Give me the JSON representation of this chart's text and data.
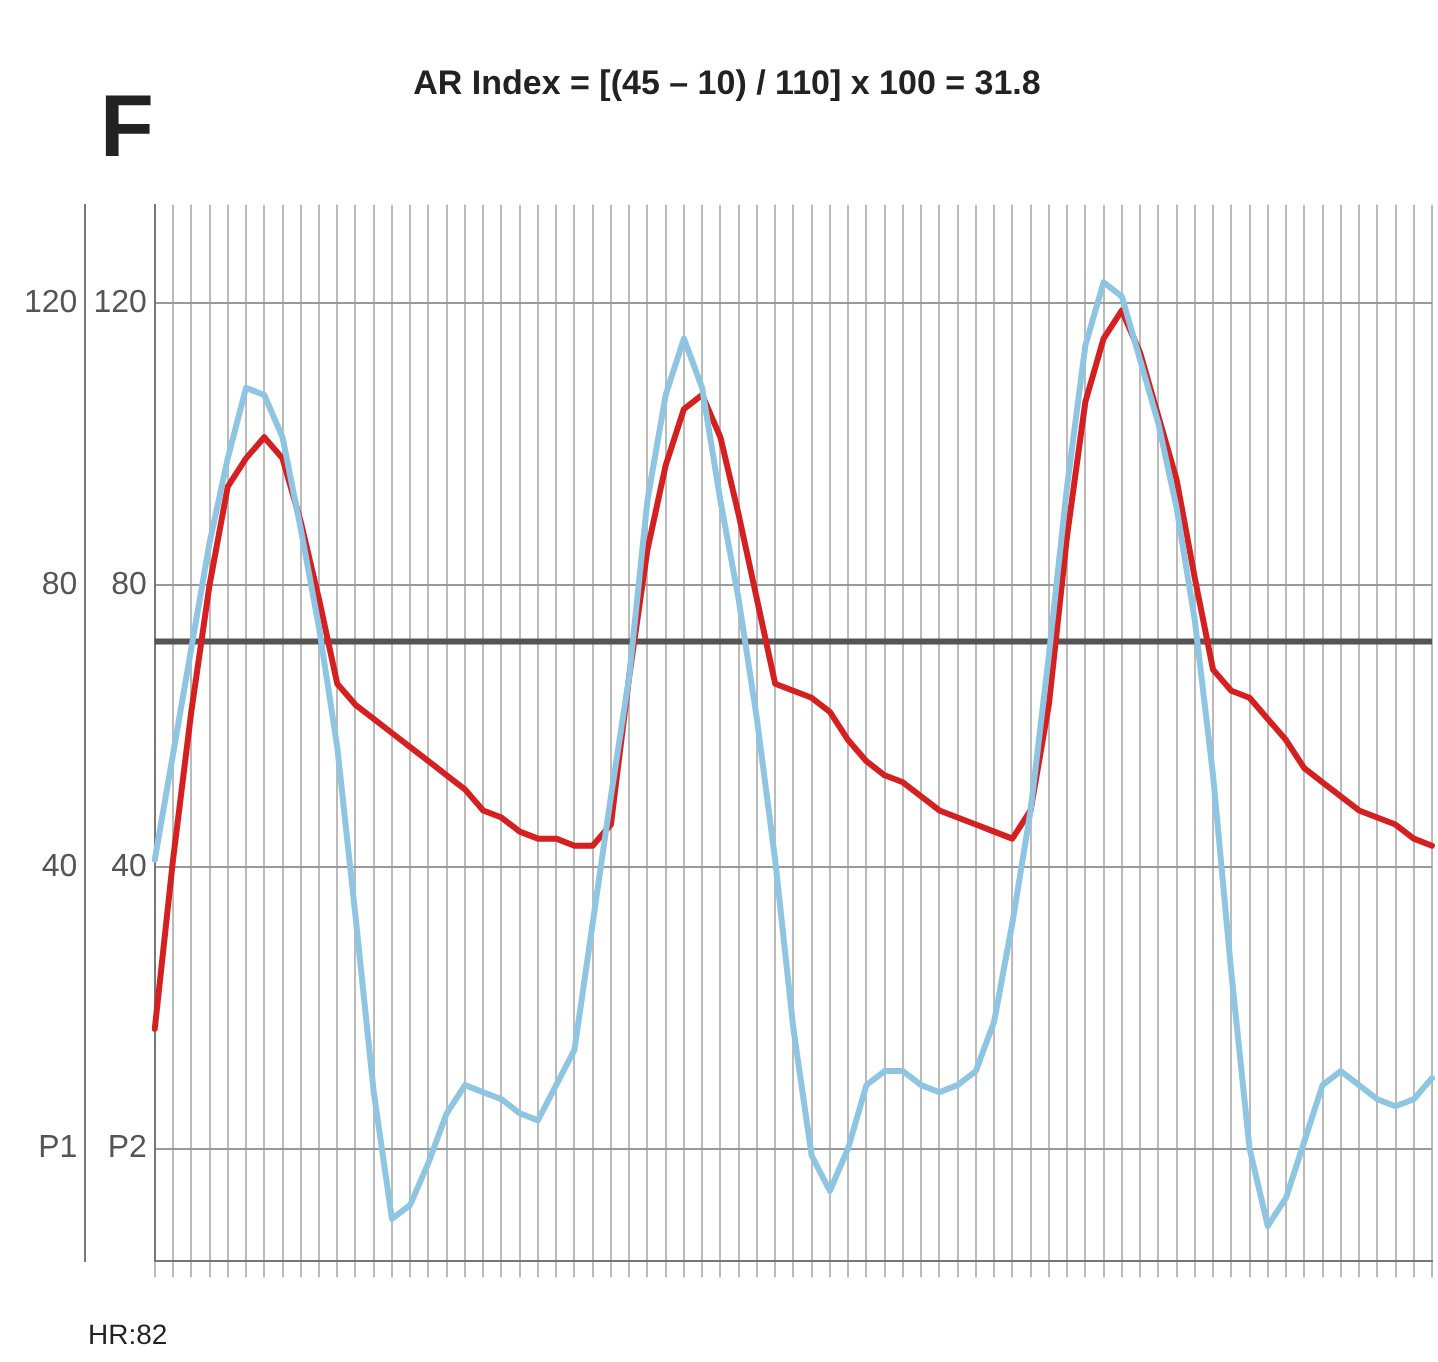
{
  "chart_data": {
    "type": "line",
    "title": "AR Index = [(45 – 10) / 110] x 100 = 31.8",
    "annotations": [
      "F",
      "HR:82"
    ],
    "categories": [
      null,
      null,
      null,
      null,
      null,
      null,
      null,
      null,
      null,
      null,
      null,
      null,
      null,
      null,
      null,
      null,
      null,
      null,
      null,
      null,
      null,
      null,
      null,
      null,
      null,
      null,
      null,
      null,
      null,
      null,
      null,
      null,
      null,
      null,
      null,
      null,
      null,
      null,
      null,
      null,
      null,
      null,
      null,
      null,
      null,
      null,
      null,
      null,
      null,
      null,
      null,
      null,
      null,
      null,
      null,
      null,
      null,
      null,
      null,
      null,
      null,
      null,
      null,
      null,
      null,
      null,
      null,
      null,
      null,
      null,
      null
    ],
    "ylim": [
      -16,
      134
    ],
    "yticks": [
      {
        "value": 0,
        "label": "P1"
      },
      40,
      80,
      120
    ],
    "y2lim": [
      -16,
      134
    ],
    "y2ticks": [
      {
        "value": 0,
        "label": "P2"
      },
      40,
      80,
      120
    ],
    "grid": true,
    "legend": false,
    "marker": "none",
    "line_style": "solid",
    "ref_lines": [
      {
        "axis": "y",
        "value": 72,
        "color": "#555555"
      }
    ],
    "series": [
      {
        "color": "#8ec5e3",
        "values": [
          41,
          56,
          71,
          86,
          98,
          108,
          107,
          101,
          88,
          74,
          57,
          33,
          8,
          -10,
          -8,
          -2,
          5,
          9,
          8,
          7,
          5,
          4,
          9,
          14,
          32,
          50,
          67,
          92,
          107,
          115,
          108,
          92,
          78,
          61,
          41,
          17,
          -1,
          -6,
          0,
          9,
          11,
          11,
          9,
          8,
          9,
          11,
          18,
          32,
          48,
          70,
          94,
          114,
          123,
          121,
          112,
          103,
          91,
          75,
          53,
          25,
          0,
          -11,
          -7,
          1,
          9,
          11,
          9,
          7,
          6,
          7,
          10
        ]
      },
      {
        "color": "#d42020",
        "values": [
          17,
          41,
          62,
          80,
          94,
          98,
          101,
          98,
          89,
          78,
          66,
          63,
          61,
          59,
          57,
          55,
          53,
          51,
          48,
          47,
          45,
          44,
          44,
          43,
          43,
          46,
          67,
          85,
          97,
          105,
          107,
          101,
          90,
          78,
          66,
          65,
          64,
          62,
          58,
          55,
          53,
          52,
          50,
          48,
          47,
          46,
          45,
          44,
          48,
          63,
          87,
          106,
          115,
          119,
          113,
          104,
          95,
          81,
          68,
          65,
          64,
          61,
          58,
          54,
          52,
          50,
          48,
          47,
          46,
          44,
          43
        ]
      }
    ]
  }
}
